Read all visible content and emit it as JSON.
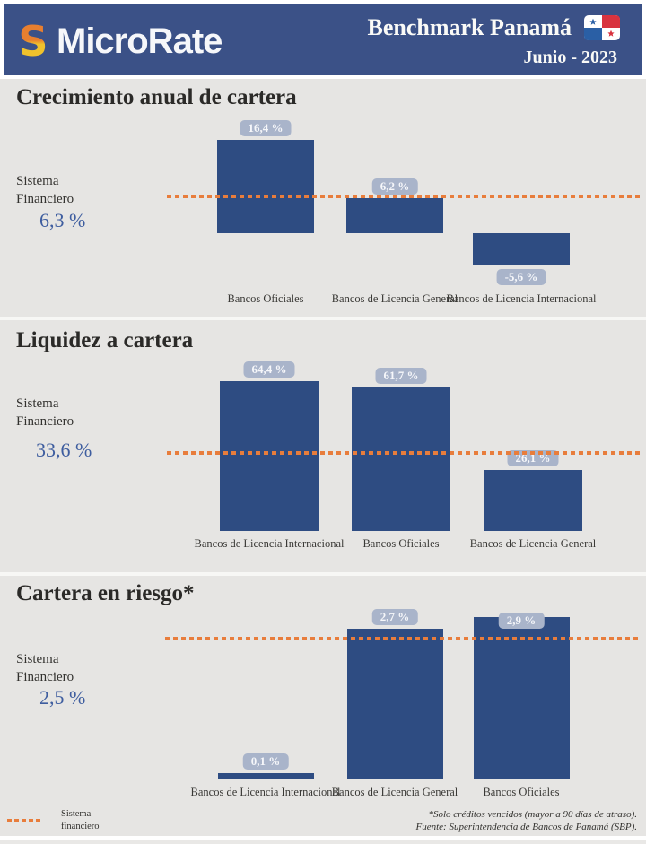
{
  "header": {
    "brand": "MicroRate",
    "title": "Benchmark Panamá",
    "subtitle": "Junio - 2023",
    "icons": [
      "microrate-s-icon",
      "panama-flag-icon"
    ]
  },
  "colors": {
    "header_bg": "#3b5187",
    "background": "#e6e5e3",
    "bar": "#2e4c82",
    "badge_bg": "#a9b4ca",
    "benchmark_line": "#e87d3c",
    "benchmark_value_text": "#3e5d9f",
    "logo_orange": "#e87f2f",
    "logo_yellow": "#f0c22c"
  },
  "chart_data": [
    {
      "type": "bar",
      "title": "Crecimiento anual de cartera",
      "categories": [
        "Bancos Oficiales",
        "Bancos de Licencia General",
        "Bancos de Licencia Internacional"
      ],
      "values": [
        16.4,
        6.2,
        -5.6
      ],
      "value_labels": [
        "16,4 %",
        "6,2 %",
        "-5,6 %"
      ],
      "unit": "%",
      "ylim": [
        -10,
        20
      ],
      "grid": false,
      "benchmark": {
        "label_line1": "Sistema",
        "label_line2": "Financiero",
        "value": 6.3,
        "value_label": "6,3 %",
        "style": "orange-dotted-line"
      }
    },
    {
      "type": "bar",
      "title": "Liquidez a cartera",
      "categories": [
        "Bancos de Licencia Internacional",
        "Bancos Oficiales",
        "Bancos de Licencia General"
      ],
      "values": [
        64.4,
        61.7,
        26.1
      ],
      "value_labels": [
        "64,4 %",
        "61,7 %",
        "26,1 %"
      ],
      "unit": "%",
      "ylim": [
        0,
        70
      ],
      "grid": false,
      "benchmark": {
        "label_line1": "Sistema",
        "label_line2": "Financiero",
        "value": 33.6,
        "value_label": "33,6 %",
        "style": "orange-dotted-line"
      }
    },
    {
      "type": "bar",
      "title": "Cartera en riesgo*",
      "categories": [
        "Bancos de Licencia Internacional",
        "Bancos de Licencia General",
        "Bancos Oficiales"
      ],
      "values": [
        0.1,
        2.7,
        2.9
      ],
      "value_labels": [
        "0,1 %",
        "2,7 %",
        "2,9 %"
      ],
      "unit": "%",
      "ylim": [
        0,
        3.5
      ],
      "grid": false,
      "benchmark": {
        "label_line1": "Sistema",
        "label_line2": "Financiero",
        "value": 2.5,
        "value_label": "2,5 %",
        "style": "orange-dotted-line"
      }
    }
  ],
  "footer": {
    "legend_line1": "Sistema",
    "legend_line2": "financiero",
    "legend_symbol": "orange-dashed-line",
    "note": "*Solo créditos vencidos (mayor a 90 días de atraso).",
    "source": "Fuente: Superintendencia de Bancos de Panamá (SBP)."
  }
}
